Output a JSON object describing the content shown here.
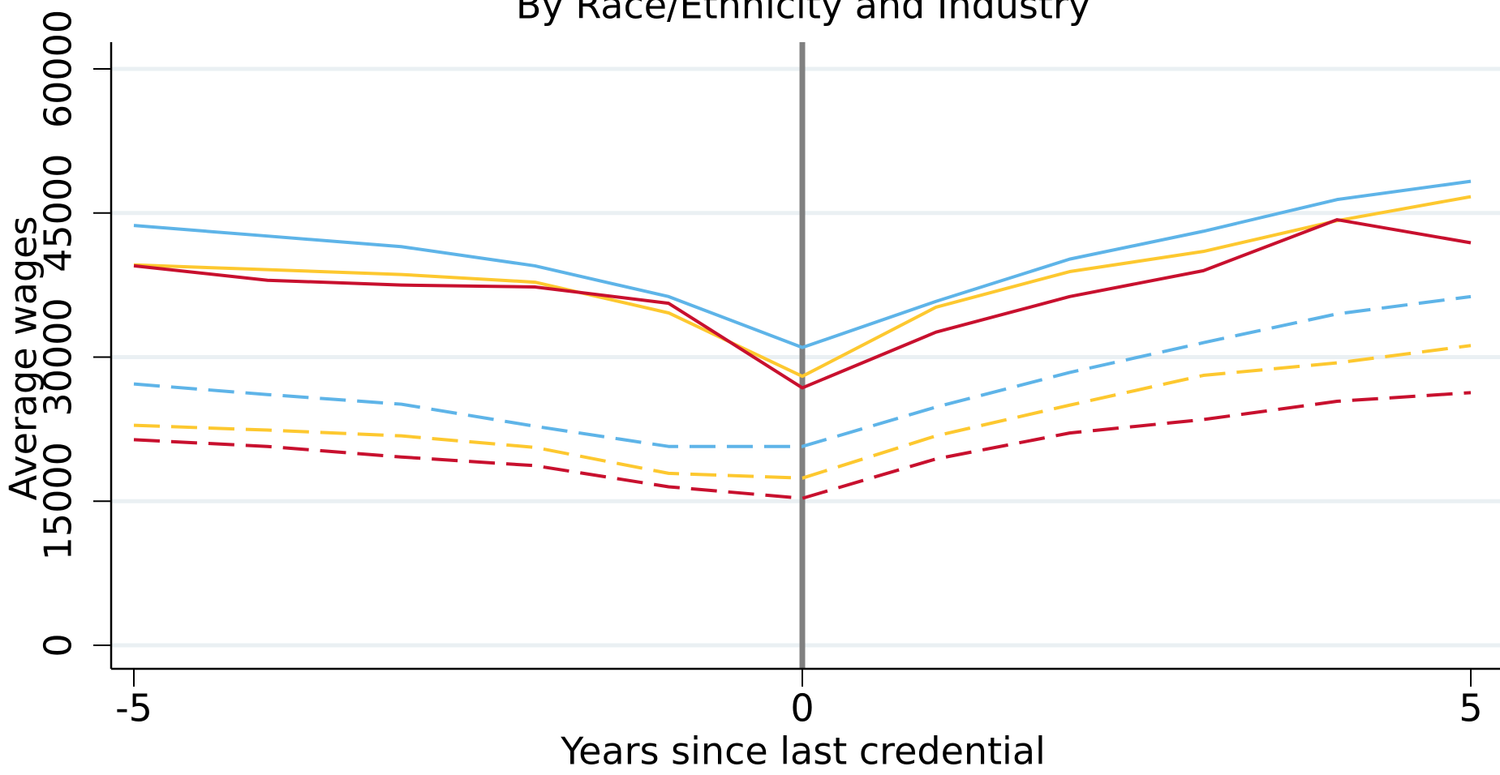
{
  "chart_data": {
    "type": "line",
    "title": "By Race/Ethnicity and Industry",
    "x_label": "Years since last credential",
    "y_label": "Average wages",
    "x": [
      -5,
      -4,
      -3,
      -2,
      -1,
      0,
      1,
      2,
      3,
      4,
      5
    ],
    "xlim": [
      -5,
      5
    ],
    "xticks": [
      -5,
      0,
      5
    ],
    "ylim": [
      0,
      60000
    ],
    "yticks": [
      0,
      15000,
      30000,
      45000,
      60000
    ],
    "grid": true,
    "xline": 0,
    "series": [
      {
        "color": "#5eb4e8",
        "dash": false,
        "values": [
          43700,
          42600,
          41500,
          39500,
          36300,
          31000,
          35800,
          40200,
          43100,
          46400,
          48300
        ]
      },
      {
        "color": "#fdc82f",
        "dash": false,
        "values": [
          39600,
          39100,
          38600,
          37800,
          34600,
          28000,
          35200,
          38900,
          41000,
          44200,
          46700
        ]
      },
      {
        "color": "#c8102e",
        "dash": false,
        "values": [
          39500,
          38000,
          37500,
          37300,
          35600,
          26800,
          32600,
          36300,
          39000,
          44300,
          41900
        ]
      },
      {
        "color": "#5eb4e8",
        "dash": true,
        "values": [
          27200,
          26100,
          25100,
          22800,
          20700,
          20700,
          24800,
          28400,
          31500,
          34500,
          36300
        ]
      },
      {
        "color": "#fdc82f",
        "dash": true,
        "values": [
          22900,
          22400,
          21800,
          20600,
          17900,
          17400,
          21800,
          25000,
          28100,
          29400,
          31200
        ]
      },
      {
        "color": "#c8102e",
        "dash": true,
        "values": [
          21400,
          20700,
          19600,
          18700,
          16500,
          15300,
          19400,
          22100,
          23500,
          25400,
          26300
        ]
      }
    ]
  }
}
